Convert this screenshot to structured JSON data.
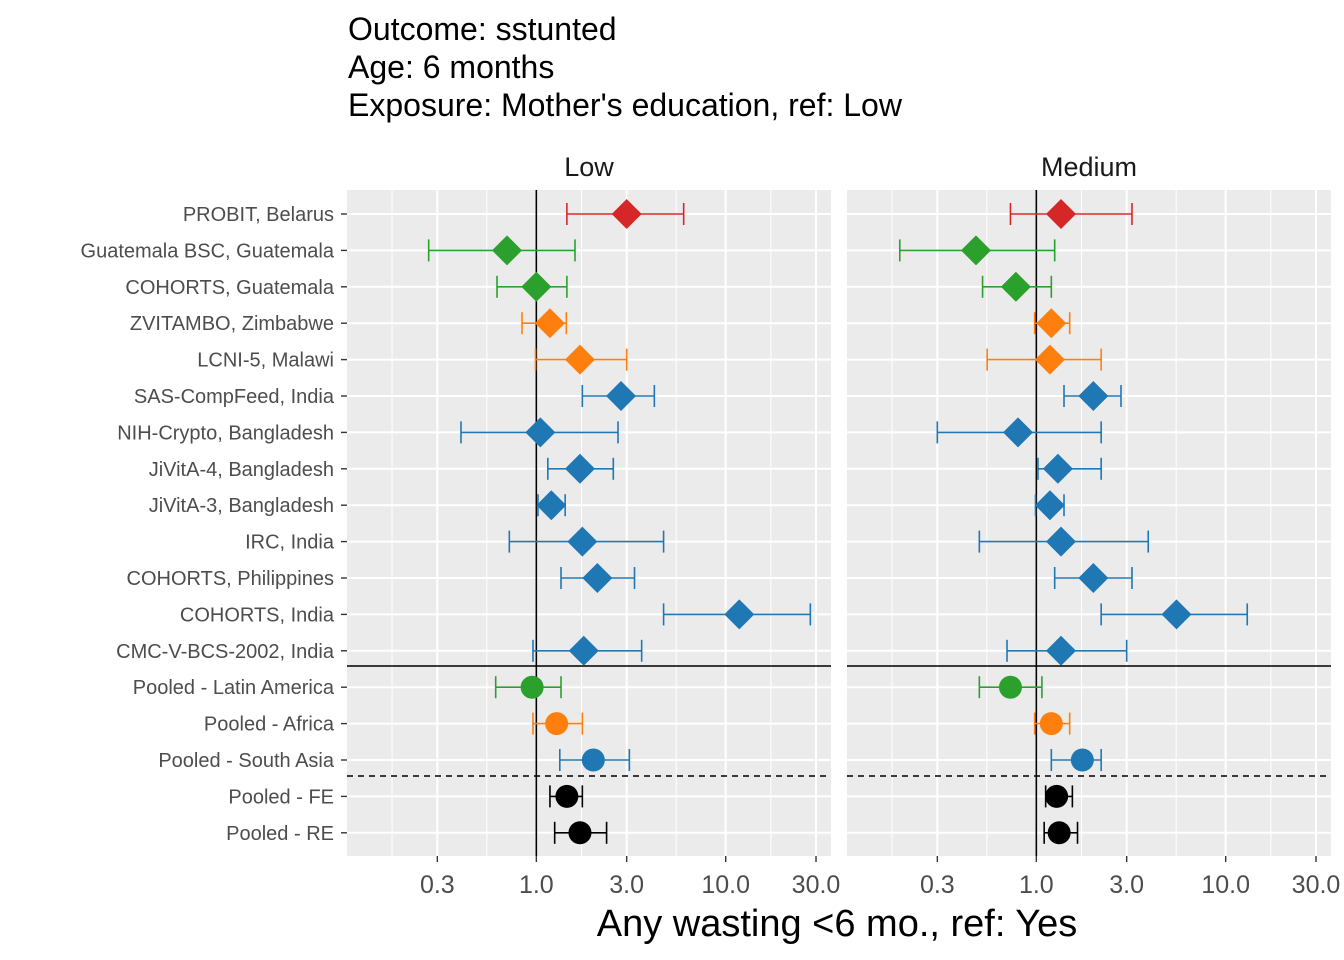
{
  "title_lines": [
    "Outcome: sstunted",
    "Age: 6 months",
    "Exposure: Mother's education, ref: Low"
  ],
  "colors": {
    "panel_bg": "#EBEBEB",
    "grid": "#FFFFFF",
    "Europe": "#D62728",
    "Latin America": "#2CA02C",
    "Africa": "#FF7F0E",
    "South Asia": "#1F77B4",
    "Pooled": "#000000",
    "axis_text": "#4D4D4D"
  },
  "chart_data": {
    "type": "forest",
    "xlabel": "Any wasting  <6 mo., ref: Yes",
    "xscale": "log10",
    "xlim": [
      0.1,
      36
    ],
    "xticks": [
      0.3,
      1.0,
      3.0,
      10.0,
      30.0
    ],
    "xtick_labels": [
      "0.3",
      "1.0",
      "3.0",
      "10.0",
      "30.0"
    ],
    "reference_line": 1.0,
    "rows": [
      "PROBIT, Belarus",
      "Guatemala BSC, Guatemala",
      "COHORTS, Guatemala",
      "ZVITAMBO, Zimbabwe",
      "LCNI-5, Malawi",
      "SAS-CompFeed, India",
      "NIH-Crypto, Bangladesh",
      "JiVitA-4, Bangladesh",
      "JiVitA-3, Bangladesh",
      "IRC, India",
      "COHORTS, Philippines",
      "COHORTS, India",
      "CMC-V-BCS-2002, India",
      "Pooled - Latin America",
      "Pooled - Africa",
      "Pooled - South Asia",
      "Pooled - FE",
      "Pooled - RE"
    ],
    "row_region": [
      "Europe",
      "Latin America",
      "Latin America",
      "Africa",
      "Africa",
      "South Asia",
      "South Asia",
      "South Asia",
      "South Asia",
      "South Asia",
      "South Asia",
      "South Asia",
      "South Asia",
      "Latin America",
      "Africa",
      "South Asia",
      "Pooled",
      "Pooled"
    ],
    "row_shape": [
      "diamond",
      "diamond",
      "diamond",
      "diamond",
      "diamond",
      "diamond",
      "diamond",
      "diamond",
      "diamond",
      "diamond",
      "diamond",
      "diamond",
      "diamond",
      "circle",
      "circle",
      "circle",
      "circle",
      "circle"
    ],
    "panels": [
      {
        "name": "Low",
        "est": [
          3.0,
          0.7,
          1.0,
          1.18,
          1.7,
          2.8,
          1.05,
          1.7,
          1.2,
          1.75,
          2.1,
          11.8,
          1.78,
          0.95,
          1.28,
          2.0,
          1.45,
          1.7
        ],
        "lower": [
          1.45,
          0.27,
          0.62,
          0.84,
          0.99,
          1.75,
          0.4,
          1.15,
          1.02,
          0.72,
          1.35,
          4.7,
          0.96,
          0.61,
          0.96,
          1.33,
          1.18,
          1.25
        ],
        "upper": [
          6.0,
          1.6,
          1.45,
          1.44,
          3.0,
          4.2,
          2.7,
          2.55,
          1.42,
          4.7,
          3.3,
          28.0,
          3.6,
          1.35,
          1.75,
          3.1,
          1.75,
          2.35
        ]
      },
      {
        "name": "Medium",
        "est": [
          1.35,
          0.48,
          0.78,
          1.2,
          1.18,
          2.0,
          0.8,
          1.3,
          1.18,
          1.35,
          2.0,
          5.5,
          1.35,
          0.73,
          1.2,
          1.75,
          1.28,
          1.32
        ],
        "lower": [
          0.73,
          0.19,
          0.52,
          0.98,
          0.55,
          1.4,
          0.3,
          1.02,
          0.99,
          0.5,
          1.25,
          2.2,
          0.7,
          0.5,
          0.98,
          1.2,
          1.12,
          1.1
        ],
        "upper": [
          3.2,
          1.25,
          1.2,
          1.5,
          2.2,
          2.8,
          2.2,
          2.2,
          1.4,
          3.9,
          3.2,
          13.0,
          3.0,
          1.07,
          1.5,
          2.2,
          1.55,
          1.65
        ]
      }
    ]
  }
}
